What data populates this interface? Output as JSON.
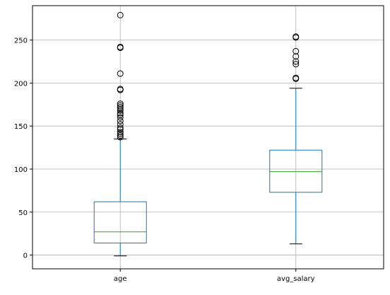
{
  "chart_data": {
    "type": "boxplot",
    "title": "",
    "xlabel": "",
    "ylabel": "",
    "ylim": [
      -16,
      290
    ],
    "yticks": [
      0,
      50,
      100,
      150,
      200,
      250
    ],
    "grid": true,
    "categories": [
      "age",
      "avg_salary"
    ],
    "boxes": [
      {
        "category": "age",
        "whisker_low": -1,
        "q1": 14,
        "median": 27,
        "q3": 62,
        "whisker_high": 135,
        "outliers": [
          137,
          139,
          141,
          143,
          146,
          148,
          152,
          156,
          160,
          163,
          165,
          168,
          170,
          172,
          174,
          176,
          192,
          193,
          211,
          241,
          242,
          279
        ]
      },
      {
        "category": "avg_salary",
        "whisker_low": 13,
        "q1": 73,
        "median": 97,
        "q3": 122,
        "whisker_high": 194,
        "outliers": [
          205,
          206,
          222,
          225,
          231,
          237,
          253,
          254
        ]
      }
    ],
    "colors": {
      "box": "#1f77b4",
      "median": "#2ca02c",
      "whisker_cap": "#000000",
      "outlier": "#000000",
      "grid": "#b0b0b0",
      "axes": "#000000"
    }
  }
}
